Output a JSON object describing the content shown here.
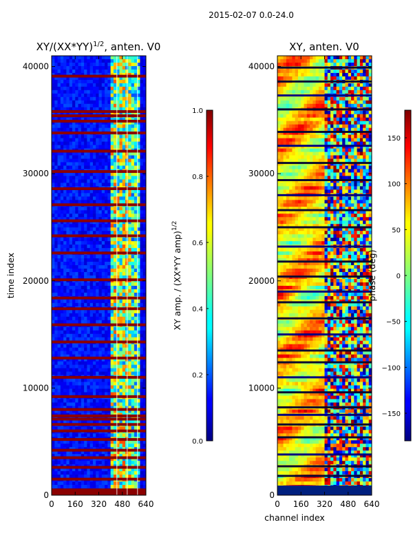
{
  "suptitle": "2015-02-07 0.0-24.0",
  "chart_data": [
    {
      "type": "heatmap",
      "title_main": "XY/(XX*YY)",
      "title_sup": "1/2",
      "title_rest": ", anten. V0",
      "ylabel": "time index",
      "xlabel": "",
      "x_ticks": [
        "0",
        "160",
        "320",
        "480",
        "640"
      ],
      "y_ticks": [
        "0",
        "10000",
        "20000",
        "30000",
        "40000"
      ],
      "xlim": [
        0,
        640
      ],
      "ylim": [
        0,
        41000
      ],
      "colorbar": {
        "label_main": "XY amp. / (XX*YY amp)",
        "label_sup": "1/2",
        "range": [
          0.0,
          1.0
        ],
        "ticks": [
          "0.0",
          "0.2",
          "0.4",
          "0.6",
          "0.8",
          "1.0"
        ]
      }
    },
    {
      "type": "heatmap",
      "title_main": "XY, anten. V0",
      "xlabel": "channel index",
      "x_ticks": [
        "0",
        "160",
        "320",
        "480",
        "640"
      ],
      "y_ticks": [
        "0",
        "10000",
        "20000",
        "30000",
        "40000"
      ],
      "xlim": [
        0,
        640
      ],
      "ylim": [
        0,
        41000
      ],
      "colorbar": {
        "label_main": "phase (deg)",
        "range": [
          -180,
          180
        ],
        "ticks": [
          "−150",
          "−100",
          "−50",
          "0",
          "50",
          "100",
          "150"
        ]
      }
    }
  ]
}
